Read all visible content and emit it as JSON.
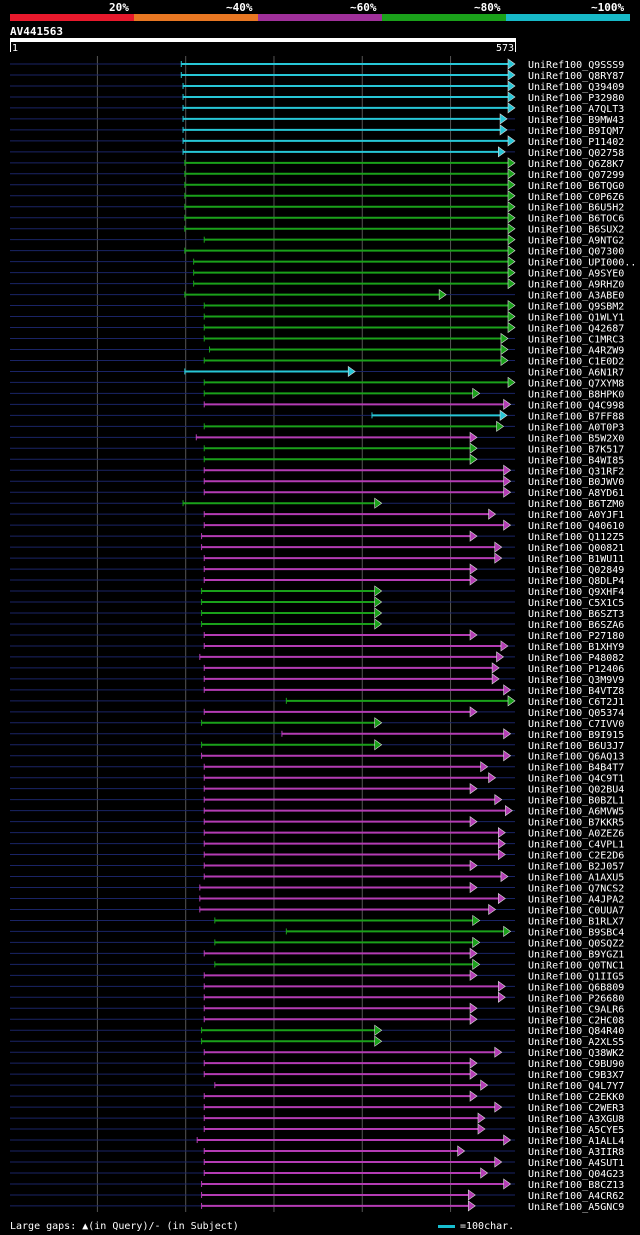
{
  "legend": {
    "labels": [
      "20%",
      "~40%",
      "~60%",
      "~80%",
      "~100%"
    ],
    "colors": [
      "#e8192c",
      "#e87722",
      "#a0309a",
      "#1aa11a",
      "#17b9c8"
    ]
  },
  "query": {
    "name": "AV441563",
    "start": "1",
    "end": "573",
    "length": 573
  },
  "color_map": {
    "cyan": "#27c6d6",
    "green": "#1aa11a",
    "magenta": "#b43cb4"
  },
  "hits": [
    {
      "name": "UniRef100_Q9SSS9",
      "s": 195,
      "e": 573,
      "c": "cyan"
    },
    {
      "name": "UniRef100_Q8RY87",
      "s": 195,
      "e": 573,
      "c": "cyan"
    },
    {
      "name": "UniRef100_Q39409",
      "s": 197,
      "e": 573,
      "c": "cyan"
    },
    {
      "name": "UniRef100_P32980",
      "s": 197,
      "e": 573,
      "c": "cyan"
    },
    {
      "name": "UniRef100_A7QLT3",
      "s": 197,
      "e": 573,
      "c": "cyan"
    },
    {
      "name": "UniRef100_B9MW43",
      "s": 197,
      "e": 564,
      "c": "cyan"
    },
    {
      "name": "UniRef100_B9IQM7",
      "s": 197,
      "e": 564,
      "c": "cyan"
    },
    {
      "name": "UniRef100_P11402",
      "s": 197,
      "e": 573,
      "c": "cyan"
    },
    {
      "name": "UniRef100_Q02758",
      "s": 197,
      "e": 562,
      "c": "cyan"
    },
    {
      "name": "UniRef100_Q6Z8K7",
      "s": 199,
      "e": 573,
      "c": "green"
    },
    {
      "name": "UniRef100_Q07299",
      "s": 199,
      "e": 573,
      "c": "green"
    },
    {
      "name": "UniRef100_B6TQG0",
      "s": 199,
      "e": 573,
      "c": "green"
    },
    {
      "name": "UniRef100_C0P6Z6",
      "s": 199,
      "e": 573,
      "c": "green"
    },
    {
      "name": "UniRef100_B6U5H2",
      "s": 199,
      "e": 573,
      "c": "green"
    },
    {
      "name": "UniRef100_B6TOC6",
      "s": 199,
      "e": 573,
      "c": "green"
    },
    {
      "name": "UniRef100_B6SUX2",
      "s": 199,
      "e": 573,
      "c": "green"
    },
    {
      "name": "UniRef100_A9NTG2",
      "s": 221,
      "e": 573,
      "c": "green"
    },
    {
      "name": "UniRef100_Q07300",
      "s": 199,
      "e": 573,
      "c": "green"
    },
    {
      "name": "UniRef100_UPI000..",
      "s": 209,
      "e": 573,
      "c": "green"
    },
    {
      "name": "UniRef100_A9SYE0",
      "s": 209,
      "e": 573,
      "c": "green"
    },
    {
      "name": "UniRef100_A9RHZ0",
      "s": 209,
      "e": 573,
      "c": "green"
    },
    {
      "name": "UniRef100_A3ABE0",
      "s": 199,
      "e": 495,
      "c": "green"
    },
    {
      "name": "UniRef100_Q9SBM2",
      "s": 221,
      "e": 573,
      "c": "green"
    },
    {
      "name": "UniRef100_Q1WLY1",
      "s": 221,
      "e": 573,
      "c": "green"
    },
    {
      "name": "UniRef100_Q42687",
      "s": 221,
      "e": 573,
      "c": "green"
    },
    {
      "name": "UniRef100_C1MRC3",
      "s": 221,
      "e": 565,
      "c": "green"
    },
    {
      "name": "UniRef100_A4RZW9",
      "s": 227,
      "e": 565,
      "c": "green"
    },
    {
      "name": "UniRef100_C1E0D2",
      "s": 221,
      "e": 565,
      "c": "green"
    },
    {
      "name": "UniRef100_A6N1R7",
      "s": 199,
      "e": 392,
      "c": "cyan"
    },
    {
      "name": "UniRef100_Q7XYM8",
      "s": 221,
      "e": 573,
      "c": "green"
    },
    {
      "name": "UniRef100_B8HPK0",
      "s": 221,
      "e": 533,
      "c": "green"
    },
    {
      "name": "UniRef100_Q4C998",
      "s": 221,
      "e": 568,
      "c": "magenta"
    },
    {
      "name": "UniRef100_B7FF88",
      "s": 411,
      "e": 564,
      "c": "cyan"
    },
    {
      "name": "UniRef100_A0T0P3",
      "s": 221,
      "e": 560,
      "c": "green"
    },
    {
      "name": "UniRef100_B5W2X0",
      "s": 212,
      "e": 530,
      "c": "magenta"
    },
    {
      "name": "UniRef100_B7K517",
      "s": 221,
      "e": 530,
      "c": "green"
    },
    {
      "name": "UniRef100_B4WI85",
      "s": 221,
      "e": 530,
      "c": "green"
    },
    {
      "name": "UniRef100_Q31RF2",
      "s": 221,
      "e": 568,
      "c": "magenta"
    },
    {
      "name": "UniRef100_B0JWV0",
      "s": 221,
      "e": 568,
      "c": "magenta"
    },
    {
      "name": "UniRef100_A8YD61",
      "s": 221,
      "e": 568,
      "c": "magenta"
    },
    {
      "name": "UniRef100_B6TZM0",
      "s": 197,
      "e": 422,
      "c": "green"
    },
    {
      "name": "UniRef100_A0YJF1",
      "s": 221,
      "e": 551,
      "c": "magenta"
    },
    {
      "name": "UniRef100_Q40610",
      "s": 221,
      "e": 568,
      "c": "magenta"
    },
    {
      "name": "UniRef100_Q112Z5",
      "s": 218,
      "e": 530,
      "c": "magenta"
    },
    {
      "name": "UniRef100_Q00821",
      "s": 218,
      "e": 558,
      "c": "magenta"
    },
    {
      "name": "UniRef100_B1WU11",
      "s": 221,
      "e": 558,
      "c": "magenta"
    },
    {
      "name": "UniRef100_Q02849",
      "s": 221,
      "e": 530,
      "c": "magenta"
    },
    {
      "name": "UniRef100_Q8DLP4",
      "s": 221,
      "e": 530,
      "c": "magenta"
    },
    {
      "name": "UniRef100_Q9XHF4",
      "s": 218,
      "e": 422,
      "c": "green"
    },
    {
      "name": "UniRef100_C5X1C5",
      "s": 218,
      "e": 422,
      "c": "green"
    },
    {
      "name": "UniRef100_B6SZT3",
      "s": 218,
      "e": 422,
      "c": "green"
    },
    {
      "name": "UniRef100_B6SZA6",
      "s": 218,
      "e": 422,
      "c": "green"
    },
    {
      "name": "UniRef100_P27180",
      "s": 221,
      "e": 530,
      "c": "magenta"
    },
    {
      "name": "UniRef100_B1XHY9",
      "s": 221,
      "e": 565,
      "c": "magenta"
    },
    {
      "name": "UniRef100_P48082",
      "s": 216,
      "e": 560,
      "c": "magenta"
    },
    {
      "name": "UniRef100_P12406",
      "s": 221,
      "e": 555,
      "c": "magenta"
    },
    {
      "name": "UniRef100_Q3M9V9",
      "s": 221,
      "e": 555,
      "c": "magenta"
    },
    {
      "name": "UniRef100_B4VTZ8",
      "s": 221,
      "e": 568,
      "c": "magenta"
    },
    {
      "name": "UniRef100_C6T2J1",
      "s": 314,
      "e": 573,
      "c": "green"
    },
    {
      "name": "UniRef100_Q05374",
      "s": 221,
      "e": 530,
      "c": "magenta"
    },
    {
      "name": "UniRef100_C7IVV0",
      "s": 218,
      "e": 422,
      "c": "green"
    },
    {
      "name": "UniRef100_B9I915",
      "s": 309,
      "e": 568,
      "c": "magenta"
    },
    {
      "name": "UniRef100_B6U3J7",
      "s": 218,
      "e": 422,
      "c": "green"
    },
    {
      "name": "UniRef100_Q6AQ13",
      "s": 218,
      "e": 568,
      "c": "magenta"
    },
    {
      "name": "UniRef100_B4B4T7",
      "s": 221,
      "e": 542,
      "c": "magenta"
    },
    {
      "name": "UniRef100_Q4C9T1",
      "s": 221,
      "e": 551,
      "c": "magenta"
    },
    {
      "name": "UniRef100_Q02BU4",
      "s": 221,
      "e": 530,
      "c": "magenta"
    },
    {
      "name": "UniRef100_B0BZL1",
      "s": 221,
      "e": 558,
      "c": "magenta"
    },
    {
      "name": "UniRef100_A6MVW5",
      "s": 221,
      "e": 570,
      "c": "magenta"
    },
    {
      "name": "UniRef100_B7KKR5",
      "s": 221,
      "e": 530,
      "c": "magenta"
    },
    {
      "name": "UniRef100_A0ZEZ6",
      "s": 221,
      "e": 562,
      "c": "magenta"
    },
    {
      "name": "UniRef100_C4VPL1",
      "s": 221,
      "e": 562,
      "c": "magenta"
    },
    {
      "name": "UniRef100_C2E2D6",
      "s": 221,
      "e": 562,
      "c": "magenta"
    },
    {
      "name": "UniRef100_B2J057",
      "s": 221,
      "e": 530,
      "c": "magenta"
    },
    {
      "name": "UniRef100_A1AXU5",
      "s": 221,
      "e": 565,
      "c": "magenta"
    },
    {
      "name": "UniRef100_Q7NCS2",
      "s": 216,
      "e": 530,
      "c": "magenta"
    },
    {
      "name": "UniRef100_A4JPA2",
      "s": 216,
      "e": 562,
      "c": "magenta"
    },
    {
      "name": "UniRef100_C0UUA7",
      "s": 216,
      "e": 551,
      "c": "magenta"
    },
    {
      "name": "UniRef100_B1RLX7",
      "s": 233,
      "e": 533,
      "c": "green"
    },
    {
      "name": "UniRef100_B9SBC4",
      "s": 314,
      "e": 568,
      "c": "green"
    },
    {
      "name": "UniRef100_Q0SQZ2",
      "s": 233,
      "e": 533,
      "c": "green"
    },
    {
      "name": "UniRef100_B9YGZ1",
      "s": 221,
      "e": 530,
      "c": "magenta"
    },
    {
      "name": "UniRef100_Q0TNC1",
      "s": 233,
      "e": 533,
      "c": "green"
    },
    {
      "name": "UniRef100_Q1IIG5",
      "s": 221,
      "e": 530,
      "c": "magenta"
    },
    {
      "name": "UniRef100_Q6B809",
      "s": 221,
      "e": 562,
      "c": "magenta"
    },
    {
      "name": "UniRef100_P26680",
      "s": 221,
      "e": 562,
      "c": "magenta"
    },
    {
      "name": "UniRef100_C9ALR6",
      "s": 221,
      "e": 530,
      "c": "magenta"
    },
    {
      "name": "UniRef100_C2HC08",
      "s": 221,
      "e": 530,
      "c": "magenta"
    },
    {
      "name": "UniRef100_Q84R40",
      "s": 218,
      "e": 422,
      "c": "green"
    },
    {
      "name": "UniRef100_A2XLS5",
      "s": 218,
      "e": 422,
      "c": "green"
    },
    {
      "name": "UniRef100_Q38WK2",
      "s": 221,
      "e": 558,
      "c": "magenta"
    },
    {
      "name": "UniRef100_C9BU90",
      "s": 221,
      "e": 530,
      "c": "magenta"
    },
    {
      "name": "UniRef100_C9B3X7",
      "s": 221,
      "e": 530,
      "c": "magenta"
    },
    {
      "name": "UniRef100_Q4L7Y7",
      "s": 233,
      "e": 542,
      "c": "magenta"
    },
    {
      "name": "UniRef100_C2EKK0",
      "s": 221,
      "e": 530,
      "c": "magenta"
    },
    {
      "name": "UniRef100_C2WER3",
      "s": 221,
      "e": 558,
      "c": "magenta"
    },
    {
      "name": "UniRef100_A3XGU8",
      "s": 221,
      "e": 539,
      "c": "magenta"
    },
    {
      "name": "UniRef100_A5CYE5",
      "s": 221,
      "e": 539,
      "c": "magenta"
    },
    {
      "name": "UniRef100_A1ALL4",
      "s": 213,
      "e": 568,
      "c": "magenta"
    },
    {
      "name": "UniRef100_A3IIR8",
      "s": 221,
      "e": 516,
      "c": "magenta"
    },
    {
      "name": "UniRef100_A4SUT1",
      "s": 221,
      "e": 558,
      "c": "magenta"
    },
    {
      "name": "UniRef100_Q04G23",
      "s": 221,
      "e": 542,
      "c": "magenta"
    },
    {
      "name": "UniRef100_B8CZ13",
      "s": 218,
      "e": 568,
      "c": "magenta"
    },
    {
      "name": "UniRef100_A4CR62",
      "s": 218,
      "e": 528,
      "c": "magenta"
    },
    {
      "name": "UniRef100_A5GNC9",
      "s": 218,
      "e": 528,
      "c": "magenta"
    }
  ],
  "footer": {
    "gaps_label": "Large gaps: ▲(in Query)/- (in Subject)",
    "scale_label": "=100char."
  }
}
